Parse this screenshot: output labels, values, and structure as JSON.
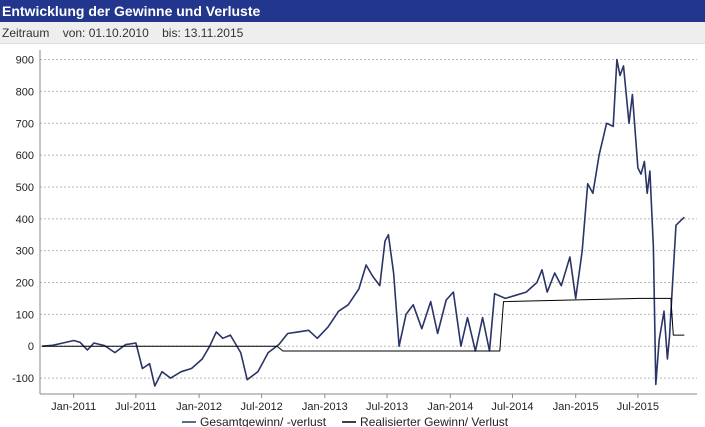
{
  "header": {
    "title": "Entwicklung der Gewinne und Verluste"
  },
  "period": {
    "label": "Zeitraum",
    "from": "von: 01.10.2010",
    "to": "bis: 13.11.2015"
  },
  "colors": {
    "header_bg": "#23368e",
    "series_total": "#2b3467",
    "series_realized": "#000000"
  },
  "chart_data": {
    "type": "line",
    "title": "",
    "xlabel": "",
    "ylabel": "",
    "ylim": [
      -150,
      930
    ],
    "yticks": [
      -100,
      0,
      100,
      200,
      300,
      400,
      500,
      600,
      700,
      800,
      900
    ],
    "grid": true,
    "legend": "bottom",
    "xticks": [
      {
        "label": "Jan-2011",
        "x": "2011-01-01"
      },
      {
        "label": "Jul-2011",
        "x": "2011-07-01"
      },
      {
        "label": "Jan-2012",
        "x": "2012-01-01"
      },
      {
        "label": "Jul-2012",
        "x": "2012-07-01"
      },
      {
        "label": "Jan-2013",
        "x": "2013-01-01"
      },
      {
        "label": "Jul-2013",
        "x": "2013-07-01"
      },
      {
        "label": "Jan-2014",
        "x": "2014-01-01"
      },
      {
        "label": "Jul-2014",
        "x": "2014-07-01"
      },
      {
        "label": "Jan-2015",
        "x": "2015-01-01"
      },
      {
        "label": "Jul-2015",
        "x": "2015-07-01"
      }
    ],
    "series": [
      {
        "name": "Gesamtgewinn/ -verlust",
        "points": [
          [
            "2010-10-01",
            0
          ],
          [
            "2010-11-01",
            3
          ],
          [
            "2010-12-01",
            10
          ],
          [
            "2011-01-01",
            18
          ],
          [
            "2011-01-20",
            12
          ],
          [
            "2011-02-10",
            -12
          ],
          [
            "2011-03-01",
            10
          ],
          [
            "2011-04-01",
            2
          ],
          [
            "2011-05-01",
            -20
          ],
          [
            "2011-06-01",
            5
          ],
          [
            "2011-07-01",
            10
          ],
          [
            "2011-07-20",
            -70
          ],
          [
            "2011-08-10",
            -55
          ],
          [
            "2011-08-25",
            -125
          ],
          [
            "2011-09-15",
            -80
          ],
          [
            "2011-10-10",
            -100
          ],
          [
            "2011-11-10",
            -80
          ],
          [
            "2011-12-10",
            -70
          ],
          [
            "2012-01-10",
            -40
          ],
          [
            "2012-02-01",
            0
          ],
          [
            "2012-02-20",
            45
          ],
          [
            "2012-03-10",
            25
          ],
          [
            "2012-04-01",
            35
          ],
          [
            "2012-05-01",
            -20
          ],
          [
            "2012-05-20",
            -105
          ],
          [
            "2012-06-20",
            -80
          ],
          [
            "2012-07-20",
            -20
          ],
          [
            "2012-08-20",
            5
          ],
          [
            "2012-09-15",
            40
          ],
          [
            "2012-10-15",
            45
          ],
          [
            "2012-11-15",
            50
          ],
          [
            "2012-12-10",
            25
          ],
          [
            "2013-01-10",
            60
          ],
          [
            "2013-02-10",
            110
          ],
          [
            "2013-03-10",
            130
          ],
          [
            "2013-04-10",
            180
          ],
          [
            "2013-05-01",
            255
          ],
          [
            "2013-05-20",
            220
          ],
          [
            "2013-06-10",
            190
          ],
          [
            "2013-06-25",
            330
          ],
          [
            "2013-07-05",
            350
          ],
          [
            "2013-07-20",
            230
          ],
          [
            "2013-08-05",
            0
          ],
          [
            "2013-08-25",
            100
          ],
          [
            "2013-09-15",
            130
          ],
          [
            "2013-10-10",
            55
          ],
          [
            "2013-11-05",
            140
          ],
          [
            "2013-11-25",
            40
          ],
          [
            "2013-12-20",
            145
          ],
          [
            "2014-01-10",
            170
          ],
          [
            "2014-02-01",
            0
          ],
          [
            "2014-02-20",
            90
          ],
          [
            "2014-03-15",
            -15
          ],
          [
            "2014-04-05",
            90
          ],
          [
            "2014-04-25",
            -15
          ],
          [
            "2014-05-10",
            165
          ],
          [
            "2014-06-10",
            150
          ],
          [
            "2014-07-10",
            160
          ],
          [
            "2014-08-10",
            170
          ],
          [
            "2014-09-10",
            200
          ],
          [
            "2014-09-25",
            240
          ],
          [
            "2014-10-10",
            170
          ],
          [
            "2014-11-01",
            230
          ],
          [
            "2014-11-20",
            190
          ],
          [
            "2014-12-15",
            280
          ],
          [
            "2015-01-01",
            150
          ],
          [
            "2015-01-20",
            300
          ],
          [
            "2015-02-05",
            510
          ],
          [
            "2015-02-20",
            480
          ],
          [
            "2015-03-10",
            600
          ],
          [
            "2015-04-01",
            700
          ],
          [
            "2015-04-20",
            690
          ],
          [
            "2015-05-01",
            900
          ],
          [
            "2015-05-10",
            850
          ],
          [
            "2015-05-20",
            880
          ],
          [
            "2015-06-05",
            700
          ],
          [
            "2015-06-15",
            790
          ],
          [
            "2015-07-01",
            560
          ],
          [
            "2015-07-10",
            540
          ],
          [
            "2015-07-20",
            580
          ],
          [
            "2015-07-28",
            480
          ],
          [
            "2015-08-05",
            550
          ],
          [
            "2015-08-15",
            310
          ],
          [
            "2015-08-22",
            -120
          ],
          [
            "2015-09-01",
            20
          ],
          [
            "2015-09-15",
            110
          ],
          [
            "2015-09-25",
            -40
          ],
          [
            "2015-10-01",
            30
          ],
          [
            "2015-10-10",
            200
          ],
          [
            "2015-10-20",
            380
          ],
          [
            "2015-11-13",
            405
          ]
        ]
      },
      {
        "name": "Realisierter Gewinn/ Verlust",
        "points": [
          [
            "2010-10-01",
            0
          ],
          [
            "2012-08-15",
            0
          ],
          [
            "2012-09-01",
            -15
          ],
          [
            "2014-05-25",
            -15
          ],
          [
            "2014-06-05",
            140
          ],
          [
            "2015-07-01",
            150
          ],
          [
            "2015-10-05",
            150
          ],
          [
            "2015-10-12",
            35
          ],
          [
            "2015-11-13",
            35
          ]
        ]
      }
    ]
  }
}
